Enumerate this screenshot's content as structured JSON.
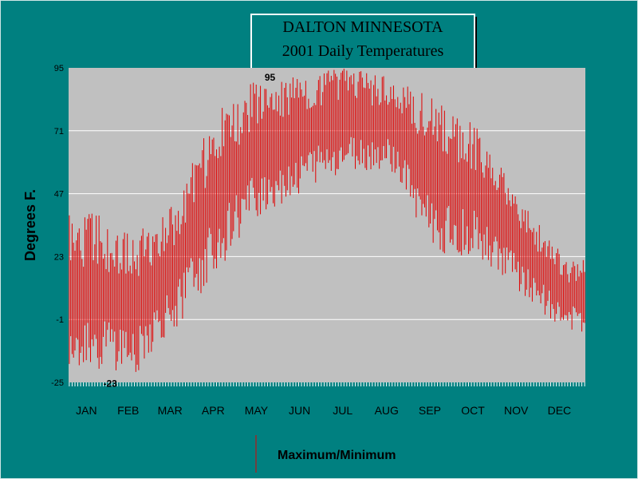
{
  "chart_data": {
    "type": "bar",
    "title_lines": [
      "DALTON MINNESOTA",
      "2001 Daily Temperatures"
    ],
    "ylabel": "Degrees F.",
    "xlabel": "",
    "yticks": [
      95,
      71,
      47,
      23,
      -1,
      -25
    ],
    "ylim": [
      -25,
      95
    ],
    "months": [
      "JAN",
      "FEB",
      "MAR",
      "APR",
      "MAY",
      "JUN",
      "JUL",
      "AUG",
      "SEP",
      "OCT",
      "NOV",
      "DEC"
    ],
    "legend": "Maximum/Minimum",
    "series_color": "#e00000",
    "grid": true,
    "annotations": [
      {
        "text": "95",
        "day": 138,
        "value": 95
      },
      {
        "text": "-23",
        "day": 24,
        "value": -23
      }
    ],
    "series": [
      {
        "name": "Maximum/Minimum",
        "monthly_max": [
          40,
          33,
          44,
          80,
          92,
          93,
          95,
          92,
          83,
          73,
          45,
          23
        ],
        "monthly_min": [
          -20,
          -23,
          -5,
          18,
          38,
          48,
          55,
          55,
          24,
          23,
          9,
          -6
        ]
      }
    ]
  }
}
